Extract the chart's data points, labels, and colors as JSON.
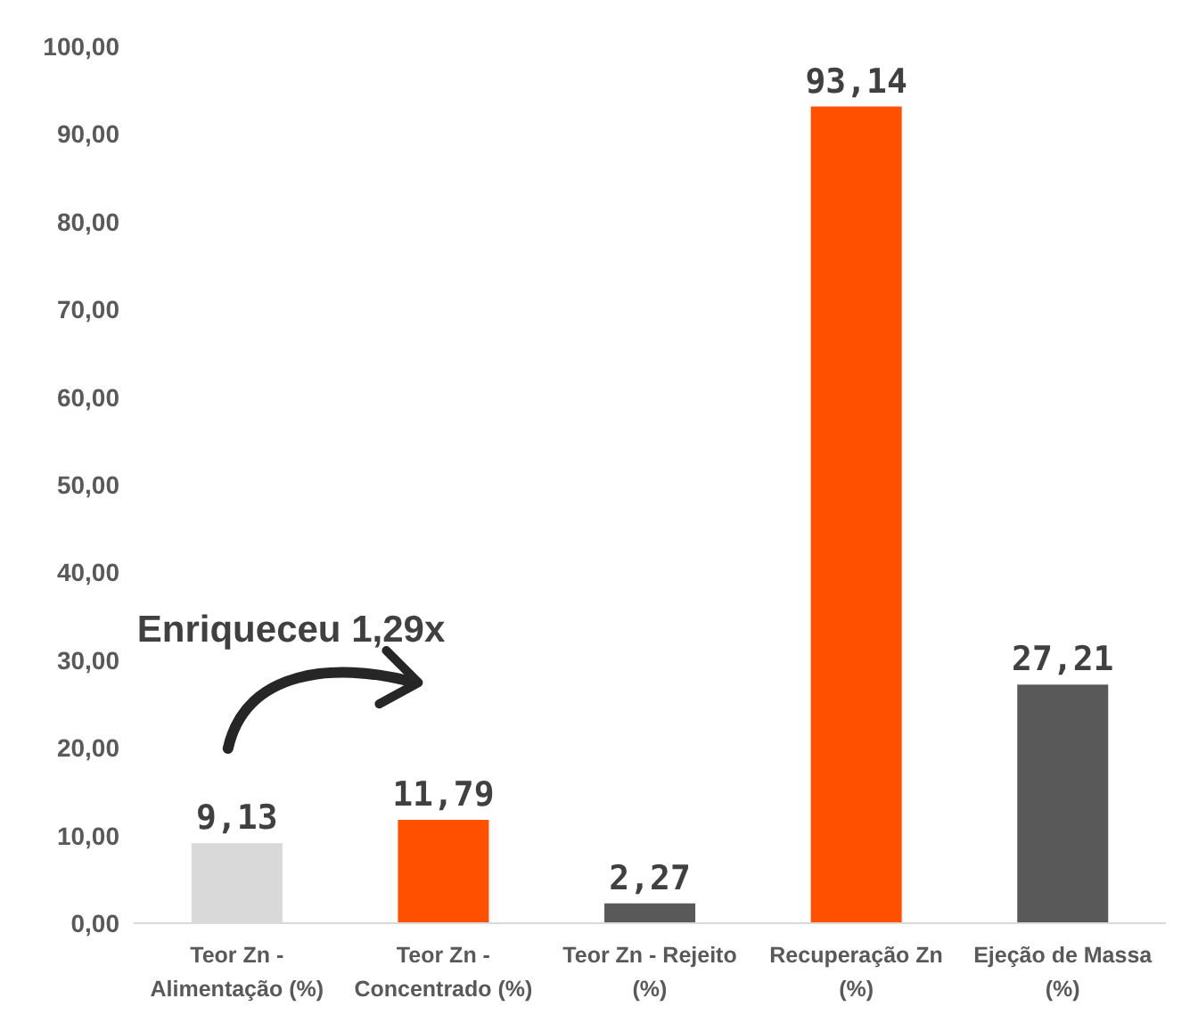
{
  "chart_data": {
    "type": "bar",
    "categories": [
      "Teor Zn - Alimentação (%)",
      "Teor Zn - Concentrado (%)",
      "Teor Zn - Rejeito (%)",
      "Recuperação Zn (%)",
      "Ejeção de Massa (%)"
    ],
    "values": [
      9.13,
      11.79,
      2.27,
      93.14,
      27.21
    ],
    "colors": [
      "#d9d9d9",
      "#ff5000",
      "#595959",
      "#ff5000",
      "#595959"
    ],
    "value_labels": [
      "9,13",
      "11,79",
      "2,27",
      "93,14",
      "27,21"
    ],
    "ylim": [
      0,
      100
    ],
    "yticks": [
      {
        "value": 0,
        "label": "0,00"
      },
      {
        "value": 10,
        "label": "10,00"
      },
      {
        "value": 20,
        "label": "20,00"
      },
      {
        "value": 30,
        "label": "30,00"
      },
      {
        "value": 40,
        "label": "40,00"
      },
      {
        "value": 50,
        "label": "50,00"
      },
      {
        "value": 60,
        "label": "60,00"
      },
      {
        "value": 70,
        "label": "70,00"
      },
      {
        "value": 80,
        "label": "80,00"
      },
      {
        "value": 90,
        "label": "90,00"
      },
      {
        "value": 100,
        "label": "100,00"
      }
    ],
    "annotations": [
      "Enriqueceu 1,29x"
    ],
    "grid": false,
    "legend": false
  }
}
